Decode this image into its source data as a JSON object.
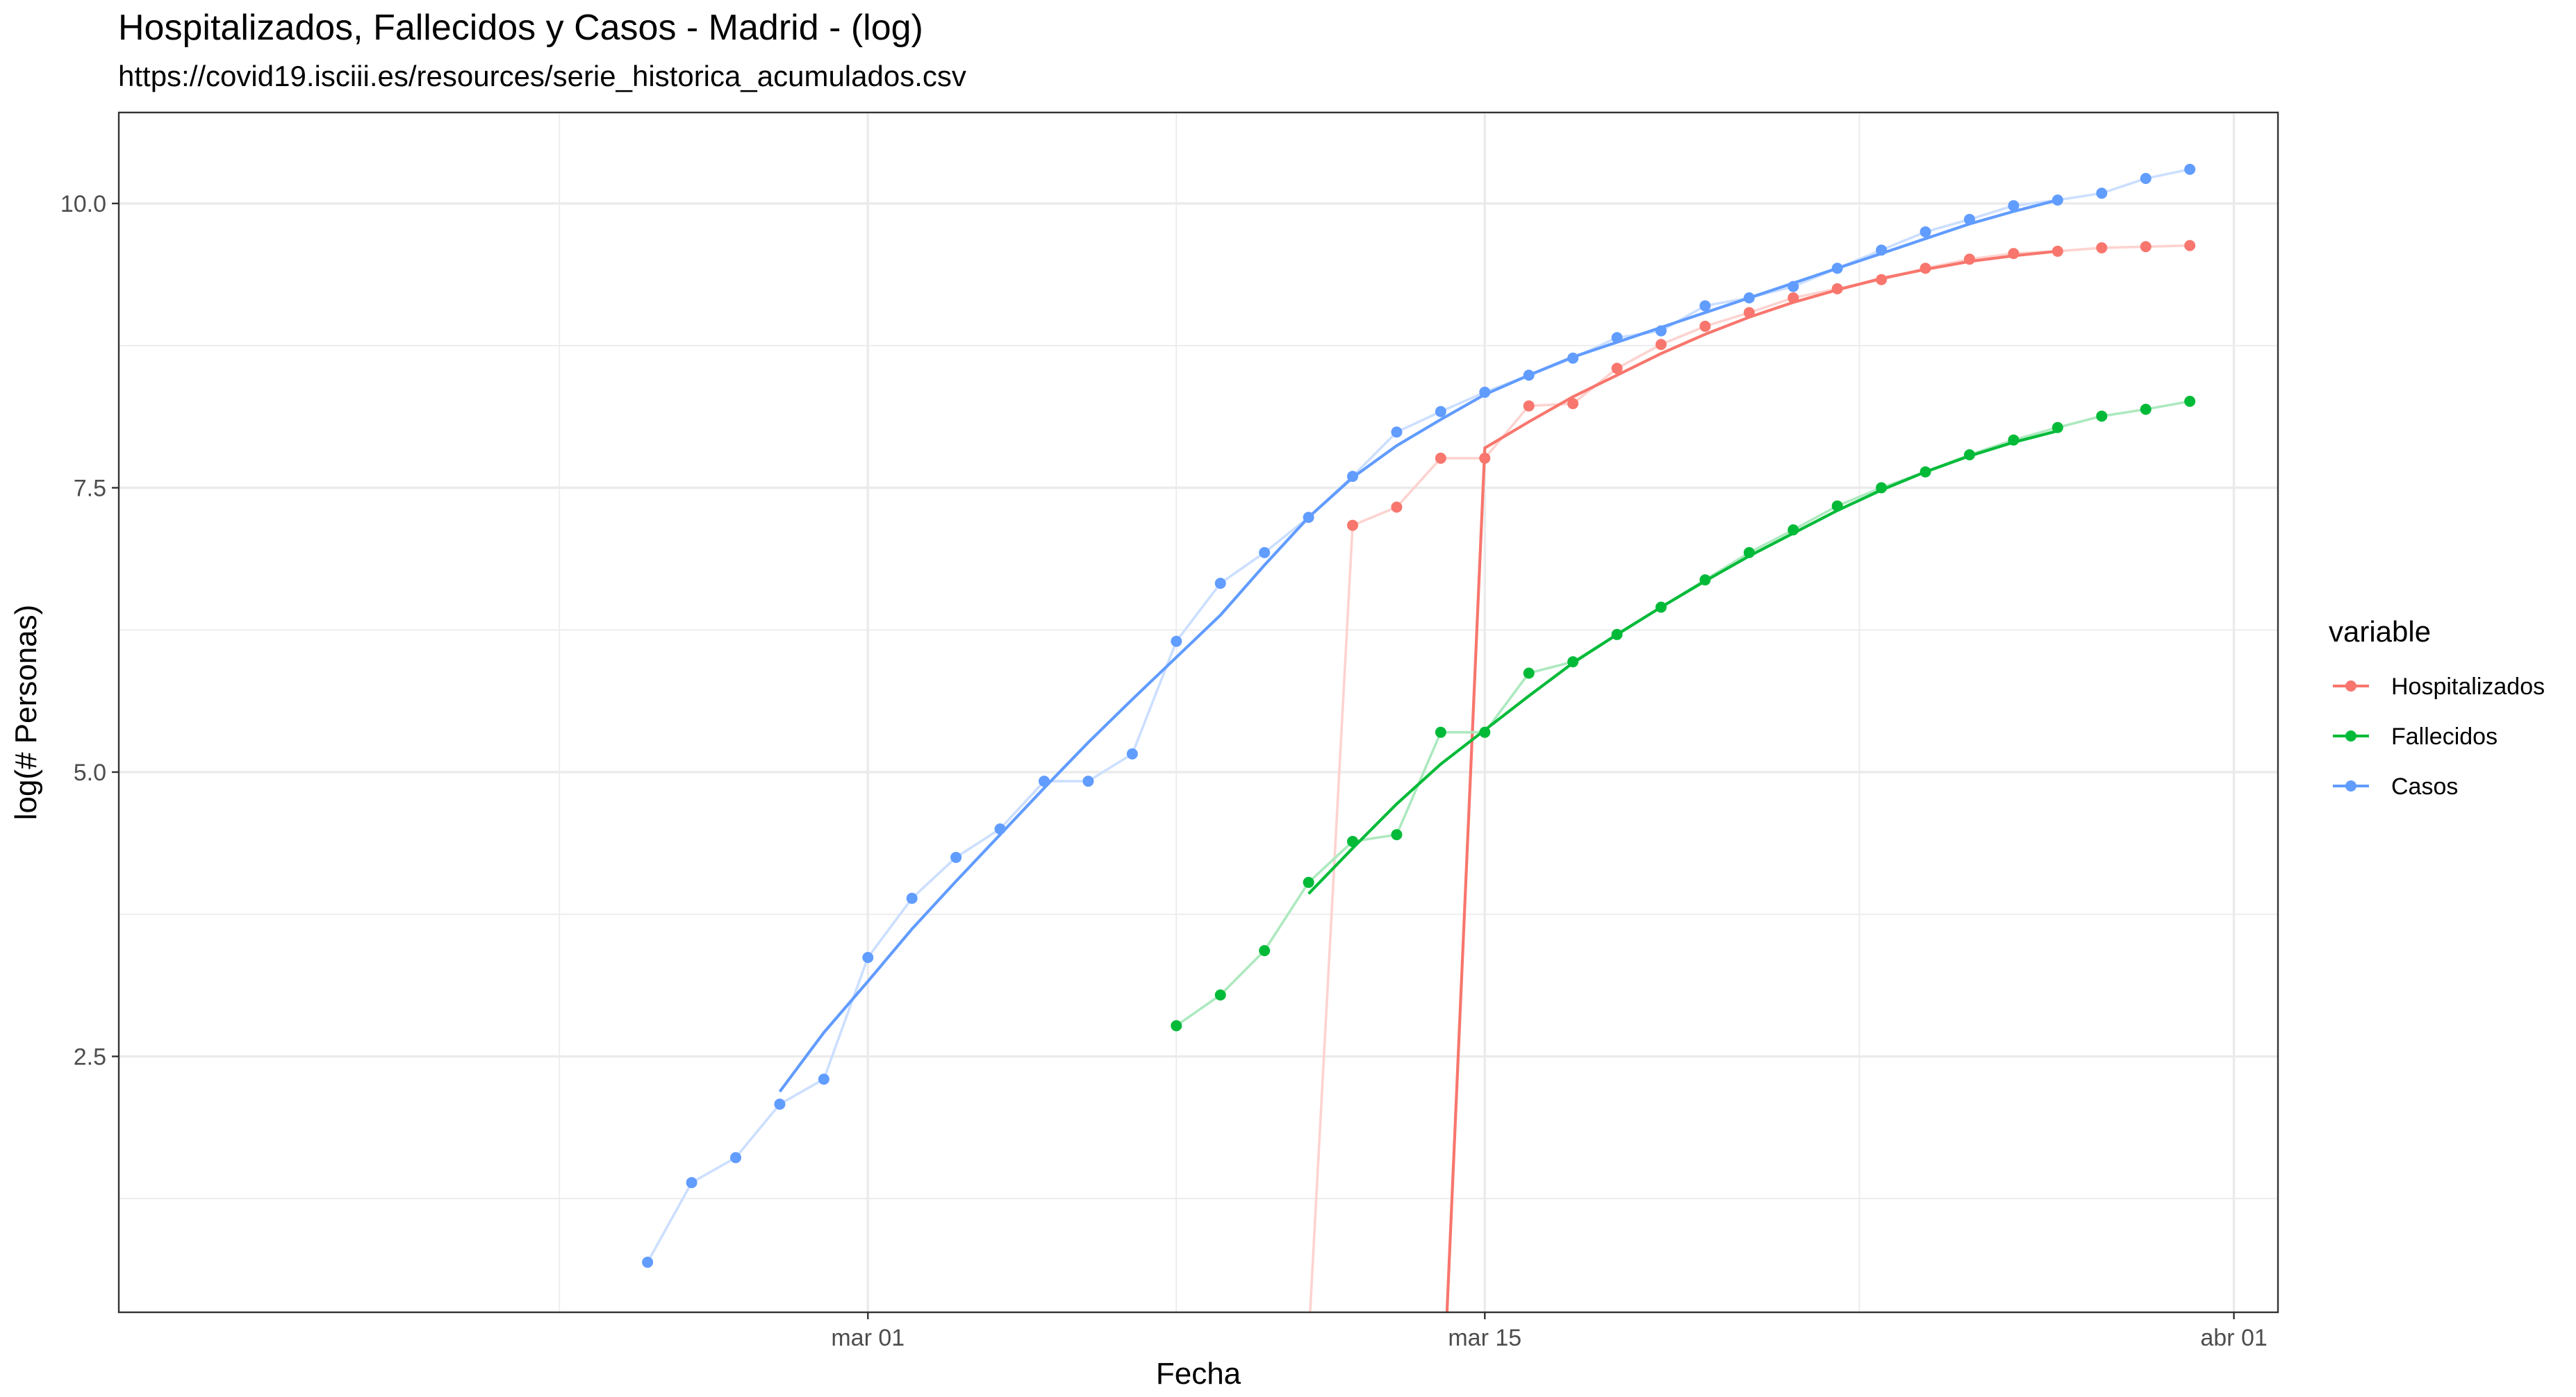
{
  "chart_data": {
    "type": "line",
    "title": "Hospitalizados, Fallecidos y Casos - Madrid - (log)",
    "subtitle": "https://covid19.isciii.es/resources/serie_historica_acumulados.csv",
    "xlabel": "Fecha",
    "ylabel": "log(# Personas)",
    "xlim": [
      "2020-02-13",
      "2020-04-02"
    ],
    "ylim": [
      0.25,
      10.8
    ],
    "x_ticks": [
      {
        "date": "2020-03-01",
        "label": "mar 01"
      },
      {
        "date": "2020-03-15",
        "label": "mar 15"
      },
      {
        "date": "2020-04-01",
        "label": "abr 01"
      }
    ],
    "y_ticks": [
      {
        "value": 2.5,
        "label": "2.5"
      },
      {
        "value": 5.0,
        "label": "5.0"
      },
      {
        "value": 7.5,
        "label": "7.5"
      },
      {
        "value": 10.0,
        "label": "10.0"
      }
    ],
    "grid": true,
    "legend": {
      "title": "variable",
      "position": "right"
    },
    "series": [
      {
        "name": "Hospitalizados",
        "color": "#F8766D",
        "points": [
          {
            "x": "2020-03-10",
            "y": 0.0
          },
          {
            "x": "2020-03-11",
            "y": 0.0
          },
          {
            "x": "2020-03-12",
            "y": 7.17
          },
          {
            "x": "2020-03-13",
            "y": 7.33
          },
          {
            "x": "2020-03-14",
            "y": 7.76
          },
          {
            "x": "2020-03-15",
            "y": 7.76
          },
          {
            "x": "2020-03-16",
            "y": 8.22
          },
          {
            "x": "2020-03-17",
            "y": 8.24
          },
          {
            "x": "2020-03-18",
            "y": 8.55
          },
          {
            "x": "2020-03-19",
            "y": 8.76
          },
          {
            "x": "2020-03-20",
            "y": 8.92
          },
          {
            "x": "2020-03-21",
            "y": 9.04
          },
          {
            "x": "2020-03-22",
            "y": 9.17
          },
          {
            "x": "2020-03-23",
            "y": 9.25
          },
          {
            "x": "2020-03-24",
            "y": 9.33
          },
          {
            "x": "2020-03-25",
            "y": 9.43
          },
          {
            "x": "2020-03-26",
            "y": 9.51
          },
          {
            "x": "2020-03-27",
            "y": 9.56
          },
          {
            "x": "2020-03-28",
            "y": 9.58
          },
          {
            "x": "2020-03-29",
            "y": 9.61
          },
          {
            "x": "2020-03-30",
            "y": 9.62
          },
          {
            "x": "2020-03-31",
            "y": 9.63
          }
        ],
        "trend": [
          {
            "x": "2020-03-14",
            "y": -1.0
          },
          {
            "x": "2020-03-15",
            "y": 7.85
          },
          {
            "x": "2020-03-16",
            "y": 8.08
          },
          {
            "x": "2020-03-17",
            "y": 8.3
          },
          {
            "x": "2020-03-18",
            "y": 8.49
          },
          {
            "x": "2020-03-19",
            "y": 8.68
          },
          {
            "x": "2020-03-20",
            "y": 8.85
          },
          {
            "x": "2020-03-21",
            "y": 9.0
          },
          {
            "x": "2020-03-22",
            "y": 9.13
          },
          {
            "x": "2020-03-23",
            "y": 9.24
          },
          {
            "x": "2020-03-24",
            "y": 9.34
          },
          {
            "x": "2020-03-25",
            "y": 9.42
          },
          {
            "x": "2020-03-26",
            "y": 9.49
          },
          {
            "x": "2020-03-27",
            "y": 9.54
          },
          {
            "x": "2020-03-28",
            "y": 9.58
          }
        ]
      },
      {
        "name": "Fallecidos",
        "color": "#00BA38",
        "points": [
          {
            "x": "2020-03-08",
            "y": 2.77
          },
          {
            "x": "2020-03-09",
            "y": 3.04
          },
          {
            "x": "2020-03-10",
            "y": 3.43
          },
          {
            "x": "2020-03-11",
            "y": 4.03
          },
          {
            "x": "2020-03-12",
            "y": 4.39
          },
          {
            "x": "2020-03-13",
            "y": 4.45
          },
          {
            "x": "2020-03-14",
            "y": 5.35
          },
          {
            "x": "2020-03-15",
            "y": 5.35
          },
          {
            "x": "2020-03-16",
            "y": 5.87
          },
          {
            "x": "2020-03-17",
            "y": 5.97
          },
          {
            "x": "2020-03-18",
            "y": 6.21
          },
          {
            "x": "2020-03-19",
            "y": 6.45
          },
          {
            "x": "2020-03-20",
            "y": 6.69
          },
          {
            "x": "2020-03-21",
            "y": 6.93
          },
          {
            "x": "2020-03-22",
            "y": 7.13
          },
          {
            "x": "2020-03-23",
            "y": 7.34
          },
          {
            "x": "2020-03-24",
            "y": 7.5
          },
          {
            "x": "2020-03-25",
            "y": 7.64
          },
          {
            "x": "2020-03-26",
            "y": 7.79
          },
          {
            "x": "2020-03-27",
            "y": 7.92
          },
          {
            "x": "2020-03-28",
            "y": 8.03
          },
          {
            "x": "2020-03-29",
            "y": 8.13
          },
          {
            "x": "2020-03-30",
            "y": 8.19
          },
          {
            "x": "2020-03-31",
            "y": 8.26
          }
        ],
        "trend": [
          {
            "x": "2020-03-11",
            "y": 3.93
          },
          {
            "x": "2020-03-12",
            "y": 4.33
          },
          {
            "x": "2020-03-13",
            "y": 4.72
          },
          {
            "x": "2020-03-14",
            "y": 5.07
          },
          {
            "x": "2020-03-15",
            "y": 5.37
          },
          {
            "x": "2020-03-16",
            "y": 5.67
          },
          {
            "x": "2020-03-17",
            "y": 5.96
          },
          {
            "x": "2020-03-18",
            "y": 6.21
          },
          {
            "x": "2020-03-19",
            "y": 6.45
          },
          {
            "x": "2020-03-20",
            "y": 6.68
          },
          {
            "x": "2020-03-21",
            "y": 6.9
          },
          {
            "x": "2020-03-22",
            "y": 7.1
          },
          {
            "x": "2020-03-23",
            "y": 7.3
          },
          {
            "x": "2020-03-24",
            "y": 7.48
          },
          {
            "x": "2020-03-25",
            "y": 7.64
          },
          {
            "x": "2020-03-26",
            "y": 7.78
          },
          {
            "x": "2020-03-27",
            "y": 7.9
          },
          {
            "x": "2020-03-28",
            "y": 8.0
          }
        ]
      },
      {
        "name": "Casos",
        "color": "#619CFF",
        "points": [
          {
            "x": "2020-02-25",
            "y": 0.69
          },
          {
            "x": "2020-02-26",
            "y": 1.39
          },
          {
            "x": "2020-02-27",
            "y": 1.61
          },
          {
            "x": "2020-02-28",
            "y": 2.08
          },
          {
            "x": "2020-02-29",
            "y": 2.3
          },
          {
            "x": "2020-03-01",
            "y": 3.37
          },
          {
            "x": "2020-03-02",
            "y": 3.89
          },
          {
            "x": "2020-03-03",
            "y": 4.25
          },
          {
            "x": "2020-03-04",
            "y": 4.5
          },
          {
            "x": "2020-03-05",
            "y": 4.92
          },
          {
            "x": "2020-03-06",
            "y": 4.92
          },
          {
            "x": "2020-03-07",
            "y": 5.16
          },
          {
            "x": "2020-03-08",
            "y": 6.15
          },
          {
            "x": "2020-03-09",
            "y": 6.66
          },
          {
            "x": "2020-03-10",
            "y": 6.93
          },
          {
            "x": "2020-03-11",
            "y": 7.24
          },
          {
            "x": "2020-03-12",
            "y": 7.6
          },
          {
            "x": "2020-03-13",
            "y": 7.99
          },
          {
            "x": "2020-03-14",
            "y": 8.17
          },
          {
            "x": "2020-03-15",
            "y": 8.34
          },
          {
            "x": "2020-03-16",
            "y": 8.49
          },
          {
            "x": "2020-03-17",
            "y": 8.64
          },
          {
            "x": "2020-03-18",
            "y": 8.82
          },
          {
            "x": "2020-03-19",
            "y": 8.88
          },
          {
            "x": "2020-03-20",
            "y": 9.1
          },
          {
            "x": "2020-03-21",
            "y": 9.17
          },
          {
            "x": "2020-03-22",
            "y": 9.27
          },
          {
            "x": "2020-03-23",
            "y": 9.43
          },
          {
            "x": "2020-03-24",
            "y": 9.59
          },
          {
            "x": "2020-03-25",
            "y": 9.75
          },
          {
            "x": "2020-03-26",
            "y": 9.86
          },
          {
            "x": "2020-03-27",
            "y": 9.98
          },
          {
            "x": "2020-03-28",
            "y": 10.03
          },
          {
            "x": "2020-03-29",
            "y": 10.09
          },
          {
            "x": "2020-03-30",
            "y": 10.22
          },
          {
            "x": "2020-03-31",
            "y": 10.3
          }
        ],
        "trend": [
          {
            "x": "2020-02-28",
            "y": 2.19
          },
          {
            "x": "2020-02-29",
            "y": 2.71
          },
          {
            "x": "2020-03-01",
            "y": 3.16
          },
          {
            "x": "2020-03-02",
            "y": 3.62
          },
          {
            "x": "2020-03-03",
            "y": 4.04
          },
          {
            "x": "2020-03-04",
            "y": 4.45
          },
          {
            "x": "2020-03-05",
            "y": 4.86
          },
          {
            "x": "2020-03-06",
            "y": 5.26
          },
          {
            "x": "2020-03-07",
            "y": 5.64
          },
          {
            "x": "2020-03-08",
            "y": 6.01
          },
          {
            "x": "2020-03-09",
            "y": 6.38
          },
          {
            "x": "2020-03-10",
            "y": 6.82
          },
          {
            "x": "2020-03-11",
            "y": 7.24
          },
          {
            "x": "2020-03-12",
            "y": 7.59
          },
          {
            "x": "2020-03-13",
            "y": 7.87
          },
          {
            "x": "2020-03-14",
            "y": 8.1
          },
          {
            "x": "2020-03-15",
            "y": 8.32
          },
          {
            "x": "2020-03-16",
            "y": 8.49
          },
          {
            "x": "2020-03-17",
            "y": 8.65
          },
          {
            "x": "2020-03-18",
            "y": 8.78
          },
          {
            "x": "2020-03-19",
            "y": 8.91
          },
          {
            "x": "2020-03-20",
            "y": 9.04
          },
          {
            "x": "2020-03-21",
            "y": 9.17
          },
          {
            "x": "2020-03-22",
            "y": 9.3
          },
          {
            "x": "2020-03-23",
            "y": 9.43
          },
          {
            "x": "2020-03-24",
            "y": 9.56
          },
          {
            "x": "2020-03-25",
            "y": 9.69
          },
          {
            "x": "2020-03-26",
            "y": 9.82
          },
          {
            "x": "2020-03-27",
            "y": 9.93
          },
          {
            "x": "2020-03-28",
            "y": 10.03
          }
        ]
      }
    ]
  }
}
